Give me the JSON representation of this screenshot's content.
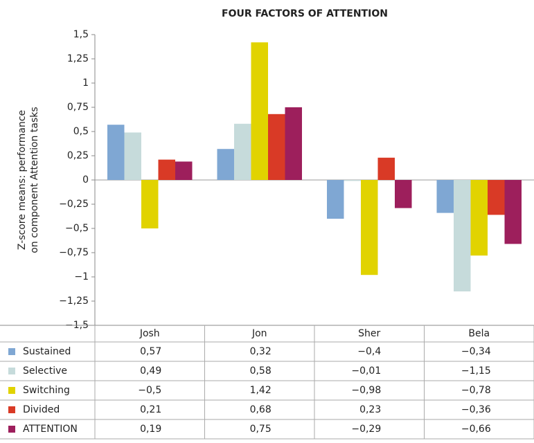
{
  "chart_data": {
    "type": "bar",
    "title": "FOUR FACTORS OF ATTENTION",
    "y_label": [
      "Z-score means: performance",
      "on component Attention tasks"
    ],
    "categories": [
      "Josh",
      "Jon",
      "Sher",
      "Bela"
    ],
    "series": [
      {
        "name": "Sustained",
        "color": "#7fa7d3",
        "values": [
          0.57,
          0.32,
          -0.4,
          -0.34
        ],
        "value_labels": [
          "0,57",
          "0,32",
          "−0,4",
          "−0,34"
        ]
      },
      {
        "name": "Selective",
        "color": "#c6dbdb",
        "values": [
          0.49,
          0.58,
          -0.01,
          -1.15
        ],
        "value_labels": [
          "0,49",
          "0,58",
          "−0,01",
          "−1,15"
        ]
      },
      {
        "name": "Switching",
        "color": "#e1d300",
        "values": [
          -0.5,
          1.42,
          -0.98,
          -0.78
        ],
        "value_labels": [
          "−0,5",
          "1,42",
          "−0,98",
          "−0,78"
        ]
      },
      {
        "name": "Divided",
        "color": "#d93a26",
        "values": [
          0.21,
          0.68,
          0.23,
          -0.36
        ],
        "value_labels": [
          "0,21",
          "0,68",
          "0,23",
          "−0,36"
        ]
      },
      {
        "name": "ATTENTION",
        "color": "#9d1f5c",
        "values": [
          0.19,
          0.75,
          -0.29,
          -0.66
        ],
        "value_labels": [
          "0,19",
          "0,75",
          "−0,29",
          "−0,66"
        ]
      }
    ],
    "ylim": [
      -1.5,
      1.5
    ],
    "yticks": [
      {
        "value": 1.5,
        "label": "1,5"
      },
      {
        "value": 1.25,
        "label": "1,25"
      },
      1,
      {
        "value": 0.75,
        "label": "0,75"
      },
      {
        "value": 0.5,
        "label": "0,5"
      },
      {
        "value": 0.25,
        "label": "0,25"
      },
      0,
      {
        "value": -0.25,
        "label": "−0,25"
      },
      {
        "value": -0.5,
        "label": "−0,5"
      },
      {
        "value": -0.75,
        "label": "−0,75"
      },
      {
        "value": -1,
        "label": "−1"
      },
      {
        "value": -1.25,
        "label": "−1,25"
      },
      {
        "value": -1.5,
        "label": "−1,5"
      }
    ]
  }
}
